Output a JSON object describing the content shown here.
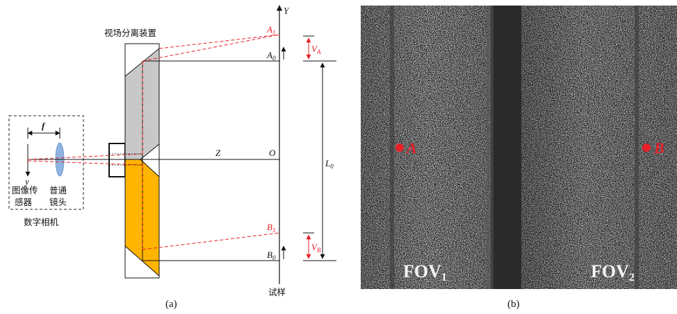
{
  "left_panel": {
    "caption": "(a)",
    "device_label": "视场分离装置",
    "sensor_label_1": "图像传",
    "sensor_label_2": "感器",
    "lens_label_1": "普通",
    "lens_label_2": "镜头",
    "camera_label": "数字相机",
    "specimen_label": "试样",
    "focal_label": "f",
    "sensor_axis_label": "y",
    "axis_y_label": "Y",
    "axis_z_label": "Z",
    "origin_label": "O",
    "point_a1": "A",
    "point_a1_sub": "1",
    "point_a0": "A",
    "point_a0_sub": "0",
    "point_b1": "B",
    "point_b1_sub": "1",
    "point_b0": "B",
    "point_b0_sub": "0",
    "dim_va": "V",
    "dim_va_sub": "A",
    "dim_vb": "V",
    "dim_vb_sub": "B",
    "dim_l0": "L",
    "dim_l0_sub": "0",
    "colors": {
      "red": "#e8202a",
      "prism_gray": "#c8c8c8",
      "prism_orange": "#ffb400",
      "lens_blue": "#8fb3e0"
    }
  },
  "right_panel": {
    "caption": "(b)",
    "fov1": "FOV",
    "fov1_sub": "1",
    "fov2": "FOV",
    "fov2_sub": "2",
    "point_a": "A",
    "point_b": "B"
  }
}
